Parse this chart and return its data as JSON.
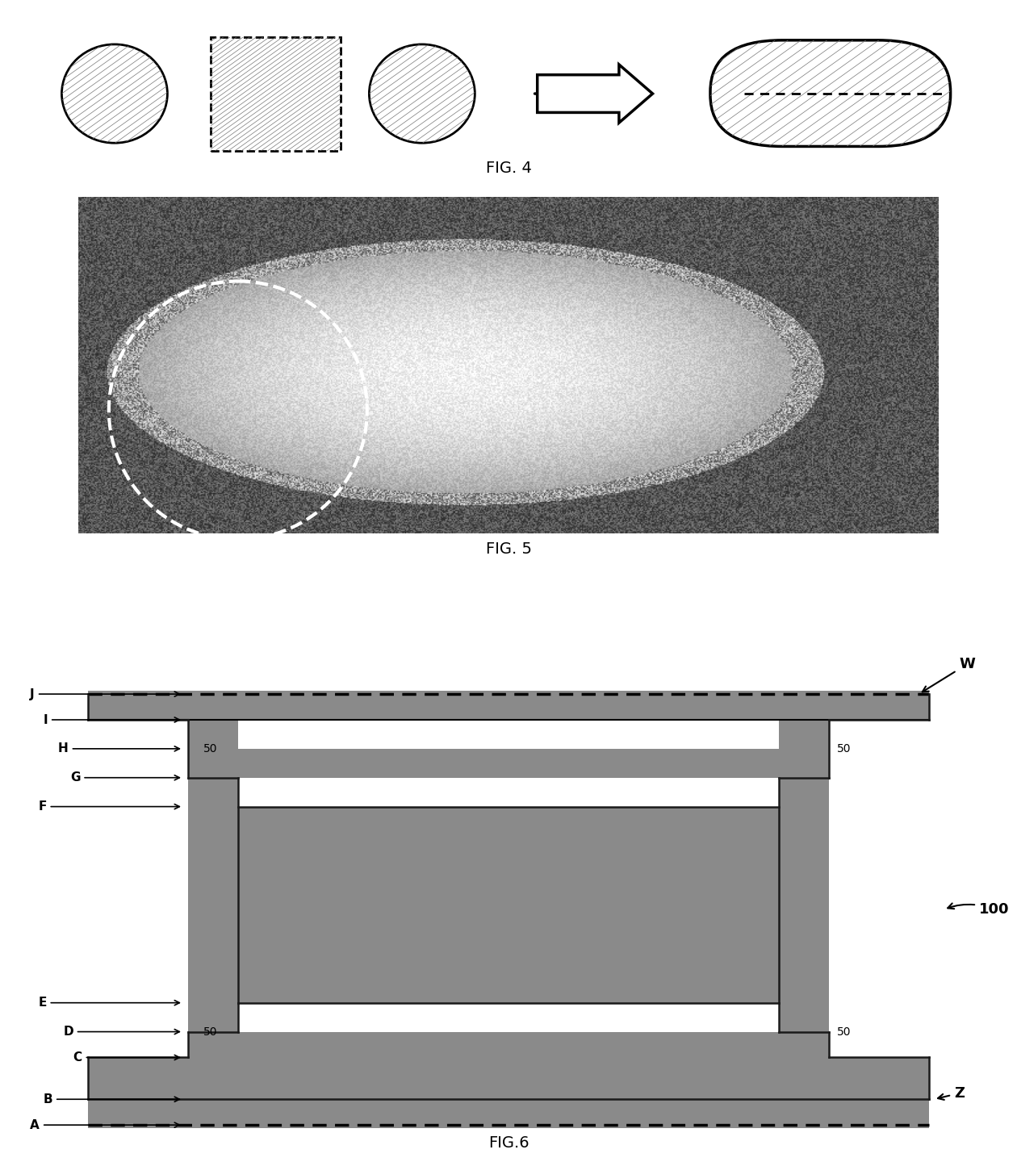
{
  "fig4_label": "FIG. 4",
  "fig5_label": "FIG. 5",
  "fig6_label": "FIG.6",
  "background_color": "#ffffff",
  "hatch_color": "#555555",
  "dark_gray": "#666666",
  "medium_gray": "#888888",
  "light_gray": "#aaaaaa",
  "dashed_color": "#333333",
  "fig6_labels_left": [
    "J",
    "I",
    "H",
    "G",
    "F",
    "E",
    "D",
    "C",
    "B",
    "A"
  ],
  "fig6_labels_right": [
    "W",
    "50",
    "50",
    "Z",
    "100"
  ],
  "fig6_50_left_top": "50",
  "fig6_50_left_bot": "50"
}
